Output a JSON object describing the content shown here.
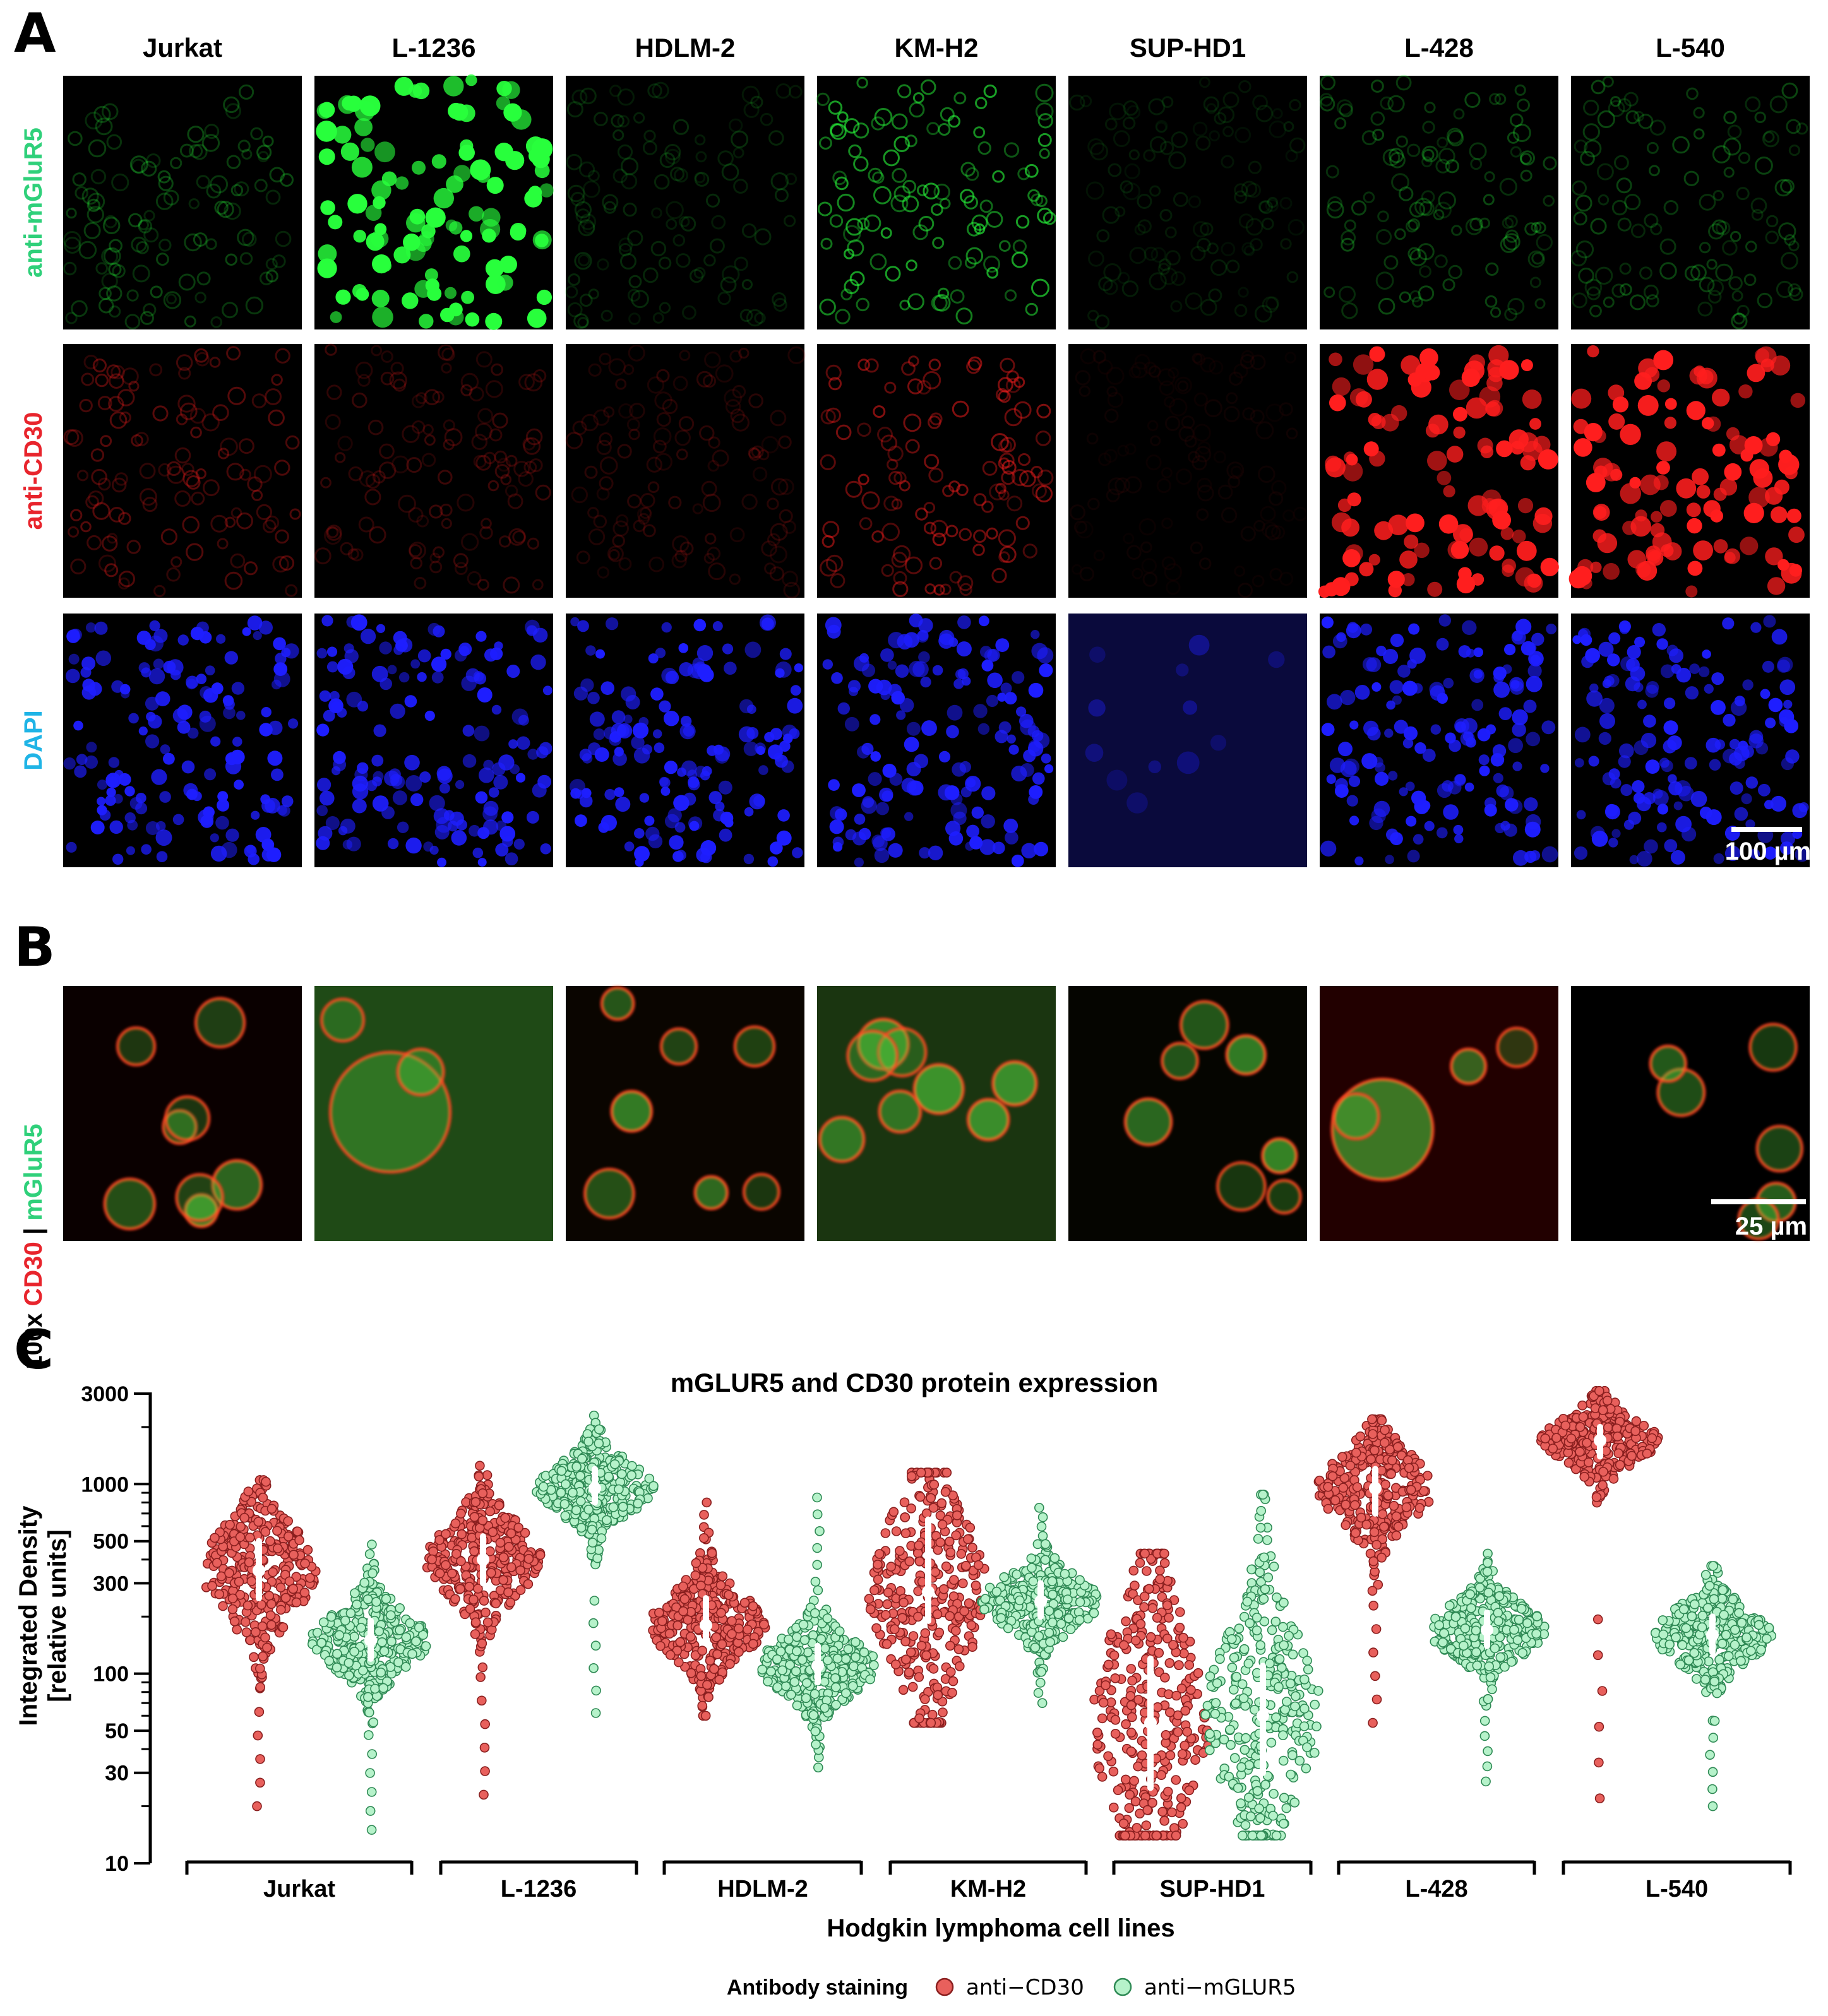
{
  "figure": {
    "panel_letters": [
      "A",
      "B",
      "C"
    ],
    "cell_lines": [
      "Jurkat",
      "L-1236",
      "HDLM-2",
      "KM-H2",
      "SUP-HD1",
      "L-428",
      "L-540"
    ],
    "panel_a": {
      "rows": [
        {
          "label": "anti-mGluR5",
          "color": "#2fd07a"
        },
        {
          "label": "anti-CD30",
          "color": "#e8242c"
        },
        {
          "label": "DAPI",
          "color": "#1fb4e6"
        }
      ],
      "scale_bar": "100 µm",
      "intensity": {
        "mGluR5": [
          0.25,
          1.0,
          0.15,
          0.55,
          0.1,
          0.25,
          0.25
        ],
        "CD30": [
          0.3,
          0.2,
          0.15,
          0.45,
          0.05,
          1.0,
          1.0
        ],
        "DAPI": [
          0.9,
          0.9,
          0.9,
          0.9,
          0.35,
          0.9,
          0.9
        ]
      }
    },
    "panel_b": {
      "label_parts": [
        {
          "text": "100x ",
          "color": "#000000"
        },
        {
          "text": "CD30",
          "color": "#e8242c"
        },
        {
          "text": " | ",
          "color": "#000000"
        },
        {
          "text": "mGluR5",
          "color": "#2fd07a"
        }
      ],
      "scale_bar": "25 µm"
    }
  },
  "chart_data": {
    "type": "scatter",
    "subtype": "beeswarm-violin",
    "title": "mGLUR5 and CD30 protein expression",
    "xlabel": "Hodgkin lymphoma cell lines",
    "ylabel": [
      "Integrated Density",
      "[relative units]"
    ],
    "yscale": "log",
    "ylim": [
      10,
      3000
    ],
    "yticks": [
      10,
      30,
      50,
      100,
      300,
      500,
      1000,
      3000
    ],
    "categories": [
      "Jurkat",
      "L-1236",
      "HDLM-2",
      "KM-H2",
      "SUP-HD1",
      "L-428",
      "L-540"
    ],
    "legend": {
      "title": "Antibody staining",
      "placement": "bottom-center",
      "entries": [
        {
          "name": "anti−CD30",
          "color": "#e8605c"
        },
        {
          "name": "anti−mGLUR5",
          "color": "#b6f2ca"
        }
      ]
    },
    "series": [
      {
        "name": "anti−CD30",
        "color": "#e8605c",
        "median": [
          350,
          400,
          180,
          270,
          55,
          950,
          1700
        ],
        "q1": [
          250,
          300,
          150,
          190,
          25,
          700,
          1400
        ],
        "q3": [
          500,
          530,
          250,
          650,
          120,
          1200,
          2000
        ],
        "min": [
          20,
          23,
          60,
          55,
          14,
          55,
          22
        ],
        "max": [
          1050,
          1250,
          800,
          1150,
          430,
          2200,
          3100
        ]
      },
      {
        "name": "anti−mGLUR5",
        "color": "#b6f2ca",
        "median": [
          150,
          950,
          110,
          240,
          60,
          170,
          160
        ],
        "q1": [
          120,
          800,
          90,
          200,
          30,
          140,
          130
        ],
        "q3": [
          190,
          1200,
          140,
          300,
          110,
          210,
          200
        ],
        "min": [
          15,
          62,
          32,
          70,
          14,
          27,
          20
        ],
        "max": [
          480,
          2300,
          850,
          750,
          880,
          430,
          370
        ]
      }
    ]
  }
}
